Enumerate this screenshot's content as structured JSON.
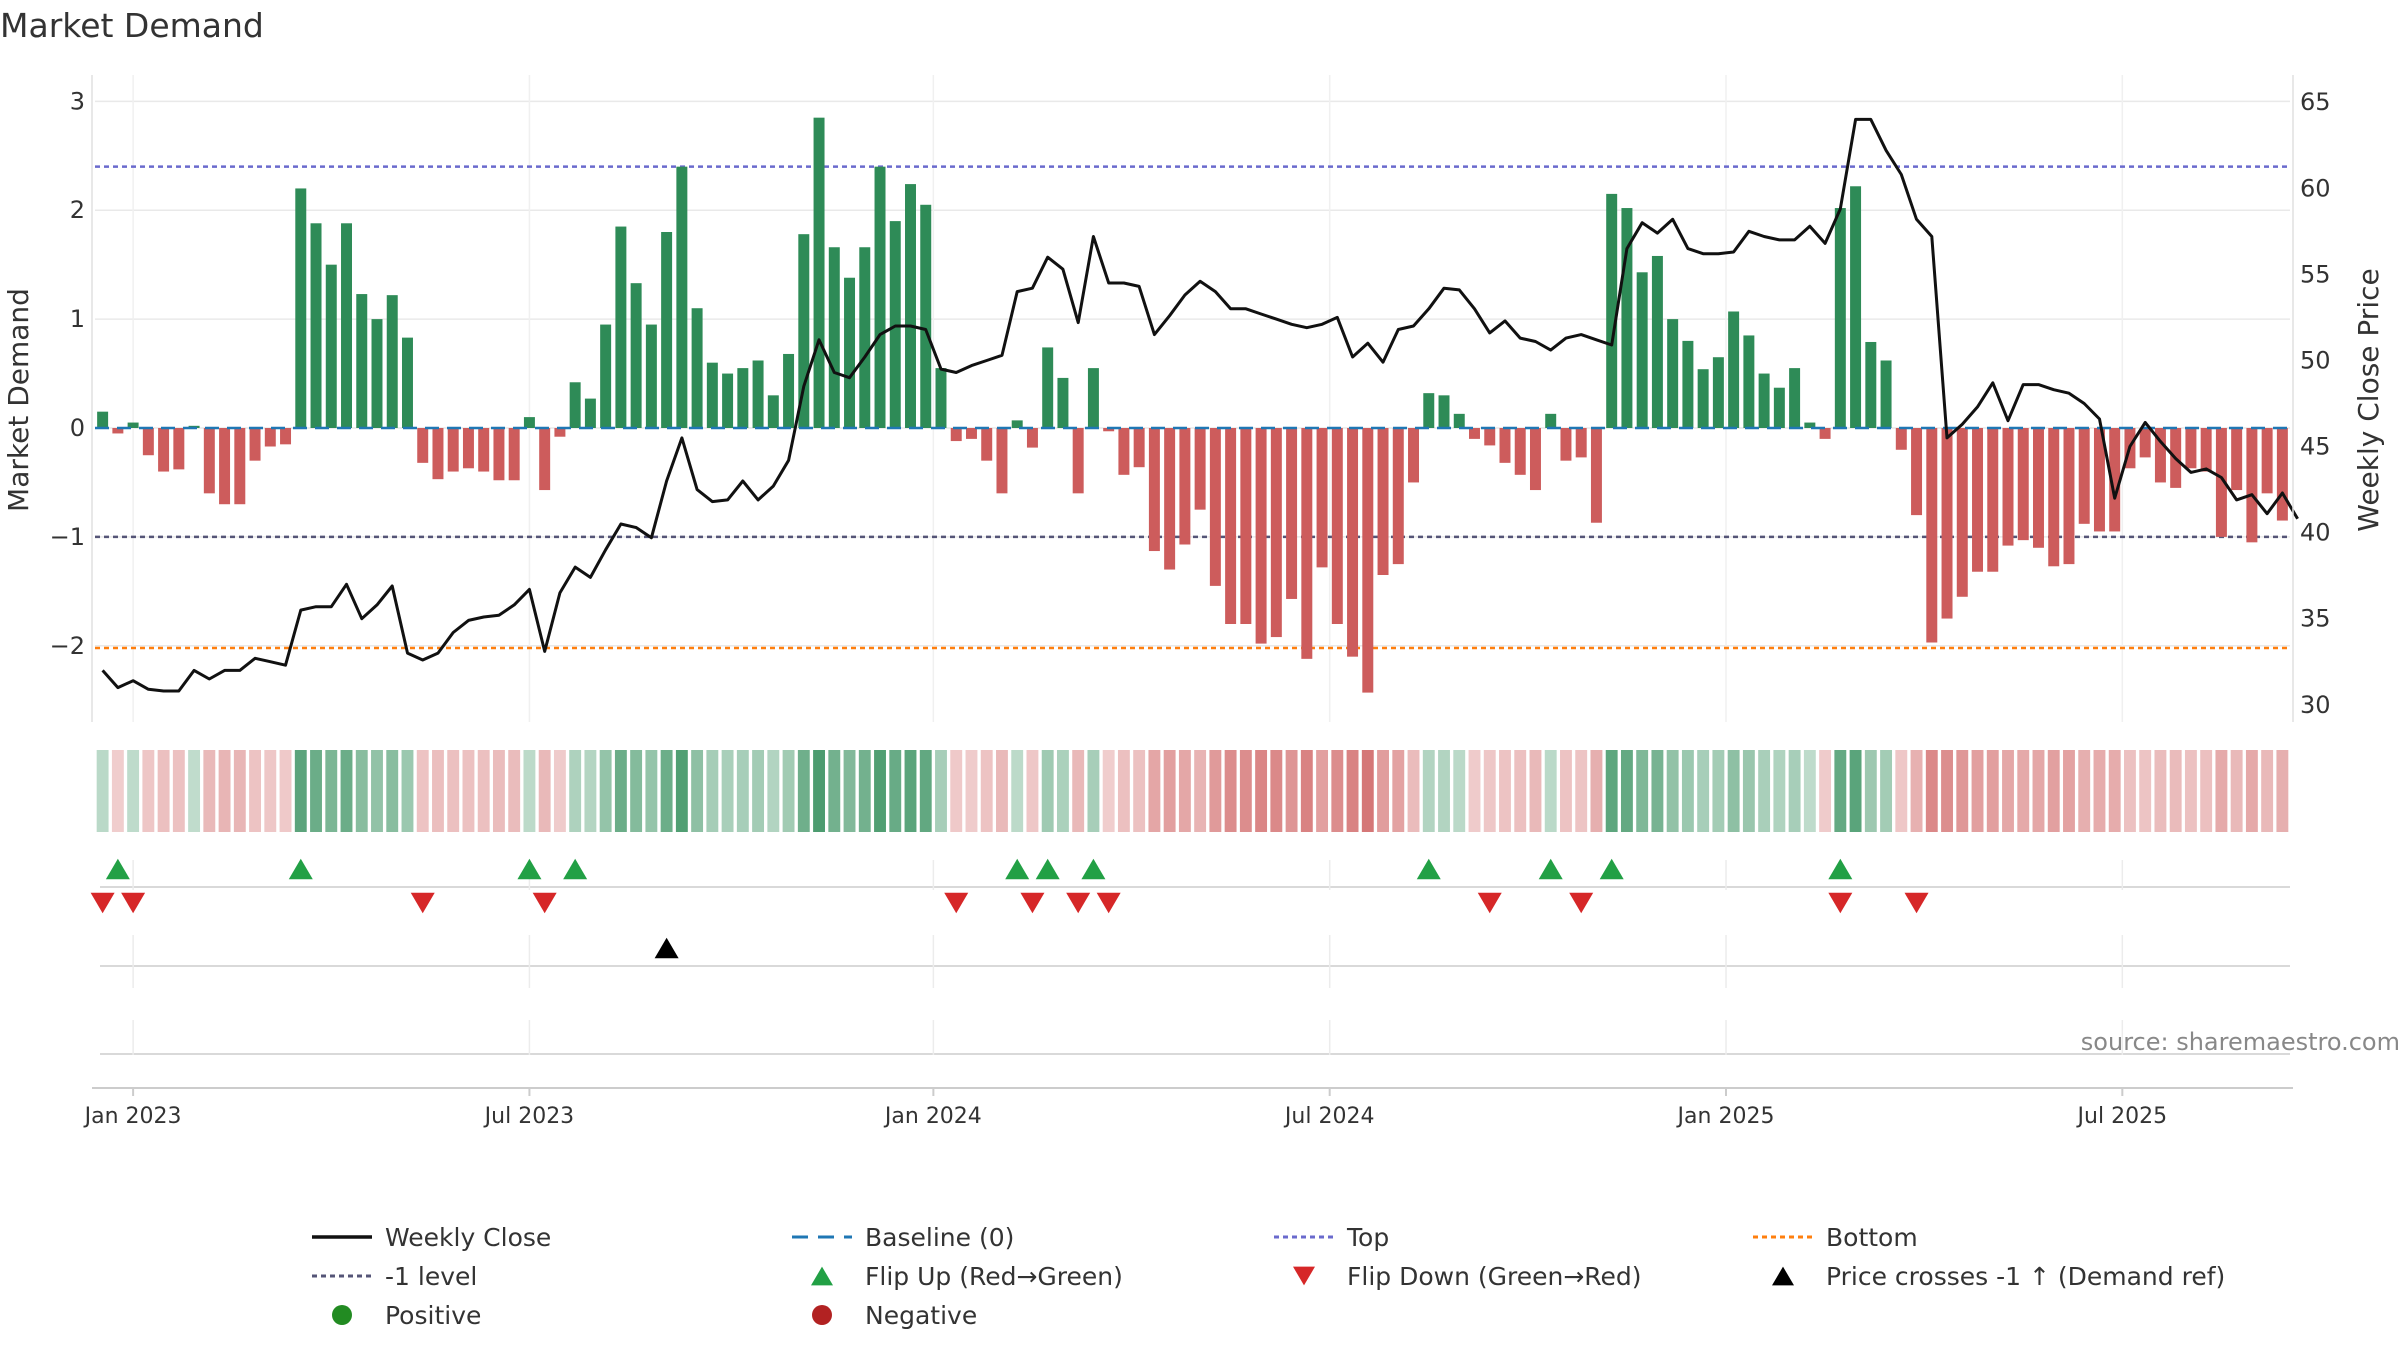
{
  "chart_data": {
    "type": "bar",
    "title": "Market Demand",
    "ylabel_left": "Market Demand",
    "ylabel_right": "Weekly Close Price",
    "source": "source: sharemaestro.com",
    "ylim_left": [
      -2.7,
      3.15
    ],
    "ylim_right": [
      29,
      66
    ],
    "yticks_left": [
      {
        "v": 3,
        "label": "3"
      },
      {
        "v": 2,
        "label": "2"
      },
      {
        "v": 1,
        "label": "1"
      },
      {
        "v": 0,
        "label": "0"
      },
      {
        "v": -1,
        "label": "−1"
      },
      {
        "v": -2,
        "label": "−2"
      }
    ],
    "yticks_right": [
      {
        "v": 65,
        "label": "65"
      },
      {
        "v": 60,
        "label": "60"
      },
      {
        "v": 55,
        "label": "55"
      },
      {
        "v": 50,
        "label": "50"
      },
      {
        "v": 45,
        "label": "45"
      },
      {
        "v": 40,
        "label": "40"
      },
      {
        "v": 35,
        "label": "35"
      },
      {
        "v": 30,
        "label": "30"
      }
    ],
    "xticks": [
      {
        "i": 2,
        "label": "Jan 2023"
      },
      {
        "i": 28,
        "label": "Jul 2023"
      },
      {
        "i": 54.5,
        "label": "Jan 2024"
      },
      {
        "i": 80.5,
        "label": "Jul 2024"
      },
      {
        "i": 106.5,
        "label": "Jan 2025"
      },
      {
        "i": 132.5,
        "label": "Jul 2025"
      }
    ],
    "levels": {
      "top": 2.4,
      "minus_one": -1,
      "bottom": -2.02,
      "baseline": 0
    },
    "demand": [
      0.15,
      -0.05,
      0.05,
      -0.25,
      -0.4,
      -0.38,
      0.02,
      -0.6,
      -0.7,
      -0.7,
      -0.3,
      -0.17,
      -0.15,
      2.2,
      1.88,
      1.5,
      1.88,
      1.23,
      1.0,
      1.22,
      0.83,
      -0.32,
      -0.47,
      -0.4,
      -0.37,
      -0.4,
      -0.48,
      -0.48,
      0.1,
      -0.57,
      -0.08,
      0.42,
      0.27,
      0.95,
      1.85,
      1.33,
      0.95,
      1.8,
      2.4,
      1.1,
      0.6,
      0.5,
      0.55,
      0.62,
      0.3,
      0.68,
      1.78,
      2.85,
      1.66,
      1.38,
      1.66,
      2.4,
      1.9,
      2.24,
      2.05,
      0.55,
      -0.12,
      -0.1,
      -0.3,
      -0.6,
      0.07,
      -0.18,
      0.74,
      0.46,
      -0.6,
      0.55,
      -0.03,
      -0.43,
      -0.36,
      -1.13,
      -1.3,
      -1.07,
      -0.75,
      -1.45,
      -1.8,
      -1.8,
      -1.98,
      -1.92,
      -1.57,
      -2.12,
      -1.28,
      -1.8,
      -2.1,
      -2.43,
      -1.35,
      -1.25,
      -0.5,
      0.32,
      0.3,
      0.13,
      -0.1,
      -0.16,
      -0.32,
      -0.43,
      -0.57,
      0.13,
      -0.3,
      -0.27,
      -0.87,
      2.15,
      2.02,
      1.43,
      1.58,
      1.0,
      0.8,
      0.54,
      0.65,
      1.07,
      0.85,
      0.5,
      0.37,
      0.55,
      0.05,
      -0.1,
      2.02,
      2.22,
      0.79,
      0.62,
      -0.2,
      -0.8,
      -1.97,
      -1.75,
      -1.55,
      -1.32,
      -1.32,
      -1.08,
      -1.03,
      -1.1,
      -1.27,
      -1.25,
      -0.88,
      -0.95,
      -0.95,
      -0.37,
      -0.27,
      -0.5,
      -0.55,
      -0.37,
      -0.4,
      -1.0,
      -0.57,
      -1.05,
      -0.6,
      -0.85
    ],
    "close": [
      32.0,
      31.0,
      31.4,
      30.9,
      30.8,
      30.8,
      32.0,
      31.5,
      32.0,
      32.0,
      32.7,
      32.5,
      32.3,
      35.5,
      35.7,
      35.7,
      37.0,
      35.0,
      35.8,
      36.9,
      33.0,
      32.6,
      33.0,
      34.2,
      34.9,
      35.1,
      35.2,
      35.8,
      36.7,
      33.1,
      36.5,
      38.0,
      37.4,
      39.0,
      40.5,
      40.3,
      39.7,
      43.0,
      45.5,
      42.5,
      41.8,
      41.9,
      43.0,
      41.9,
      42.7,
      44.2,
      48.5,
      51.2,
      49.3,
      49.0,
      50.2,
      51.5,
      52.0,
      52.0,
      51.8,
      49.5,
      49.3,
      49.7,
      50.0,
      50.3,
      54.0,
      54.2,
      56.0,
      55.3,
      52.2,
      57.2,
      54.5,
      54.5,
      54.3,
      51.5,
      52.6,
      53.8,
      54.6,
      54.0,
      53.0,
      53.0,
      52.7,
      52.4,
      52.1,
      51.9,
      52.1,
      52.5,
      50.2,
      51.0,
      49.9,
      51.8,
      52.0,
      53.0,
      54.2,
      54.1,
      53.0,
      51.6,
      52.3,
      51.3,
      51.1,
      50.6,
      51.3,
      51.5,
      51.2,
      50.9,
      56.5,
      58.0,
      57.4,
      58.2,
      56.5,
      56.2,
      56.2,
      56.3,
      57.5,
      57.2,
      57.0,
      57.0,
      57.8,
      56.8,
      58.8,
      64.0,
      64.0,
      62.2,
      60.8,
      58.2,
      57.2,
      45.5,
      46.3,
      47.3,
      48.7,
      46.5,
      48.6,
      48.6,
      48.3,
      48.1,
      47.5,
      46.6,
      42.0,
      45.0,
      46.4,
      45.3,
      44.3,
      43.5,
      43.7,
      43.2,
      41.9,
      42.2,
      41.1,
      42.3,
      40.8
    ]
  },
  "markers": {
    "flip_up": [
      1,
      13,
      28,
      31,
      60,
      62,
      65,
      87,
      95,
      99,
      114
    ],
    "flip_down": [
      0,
      2,
      21,
      29,
      56,
      61,
      64,
      66,
      91,
      97,
      114,
      119
    ],
    "price_cross": [
      37
    ]
  },
  "legend": {
    "weekly_close": "Weekly Close",
    "baseline": "Baseline (0)",
    "top": "Top",
    "bottom": "Bottom",
    "minus_one": "-1 level",
    "flip_up": "Flip Up (Red→Green)",
    "flip_down": "Flip Down (Green→Red)",
    "price_cross": "Price crosses -1 ↑ (Demand ref)",
    "positive": "Positive",
    "negative": "Negative"
  },
  "colors": {
    "bar_pos": "#2e8b57",
    "bar_neg": "#cd5c5c",
    "line": "#111111",
    "baseline": "#1f77b4",
    "top": "#6a6acd",
    "minus_one": "#555577",
    "bottom": "#ff7f0e",
    "flip_up": "#22a045",
    "flip_down": "#d62728",
    "price_cross": "#000000",
    "positive": "#228b22",
    "negative": "#b22222"
  }
}
